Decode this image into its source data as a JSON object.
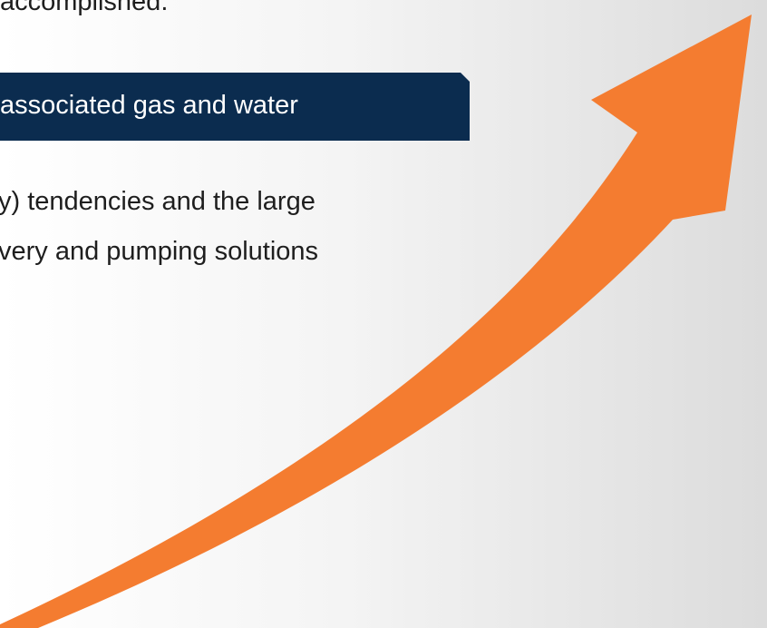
{
  "slide": {
    "line_top": "accomplished.",
    "banner": "associated gas and water",
    "paragraph": [
      "y) tendencies and the large",
      "very and pumping solutions"
    ]
  }
}
